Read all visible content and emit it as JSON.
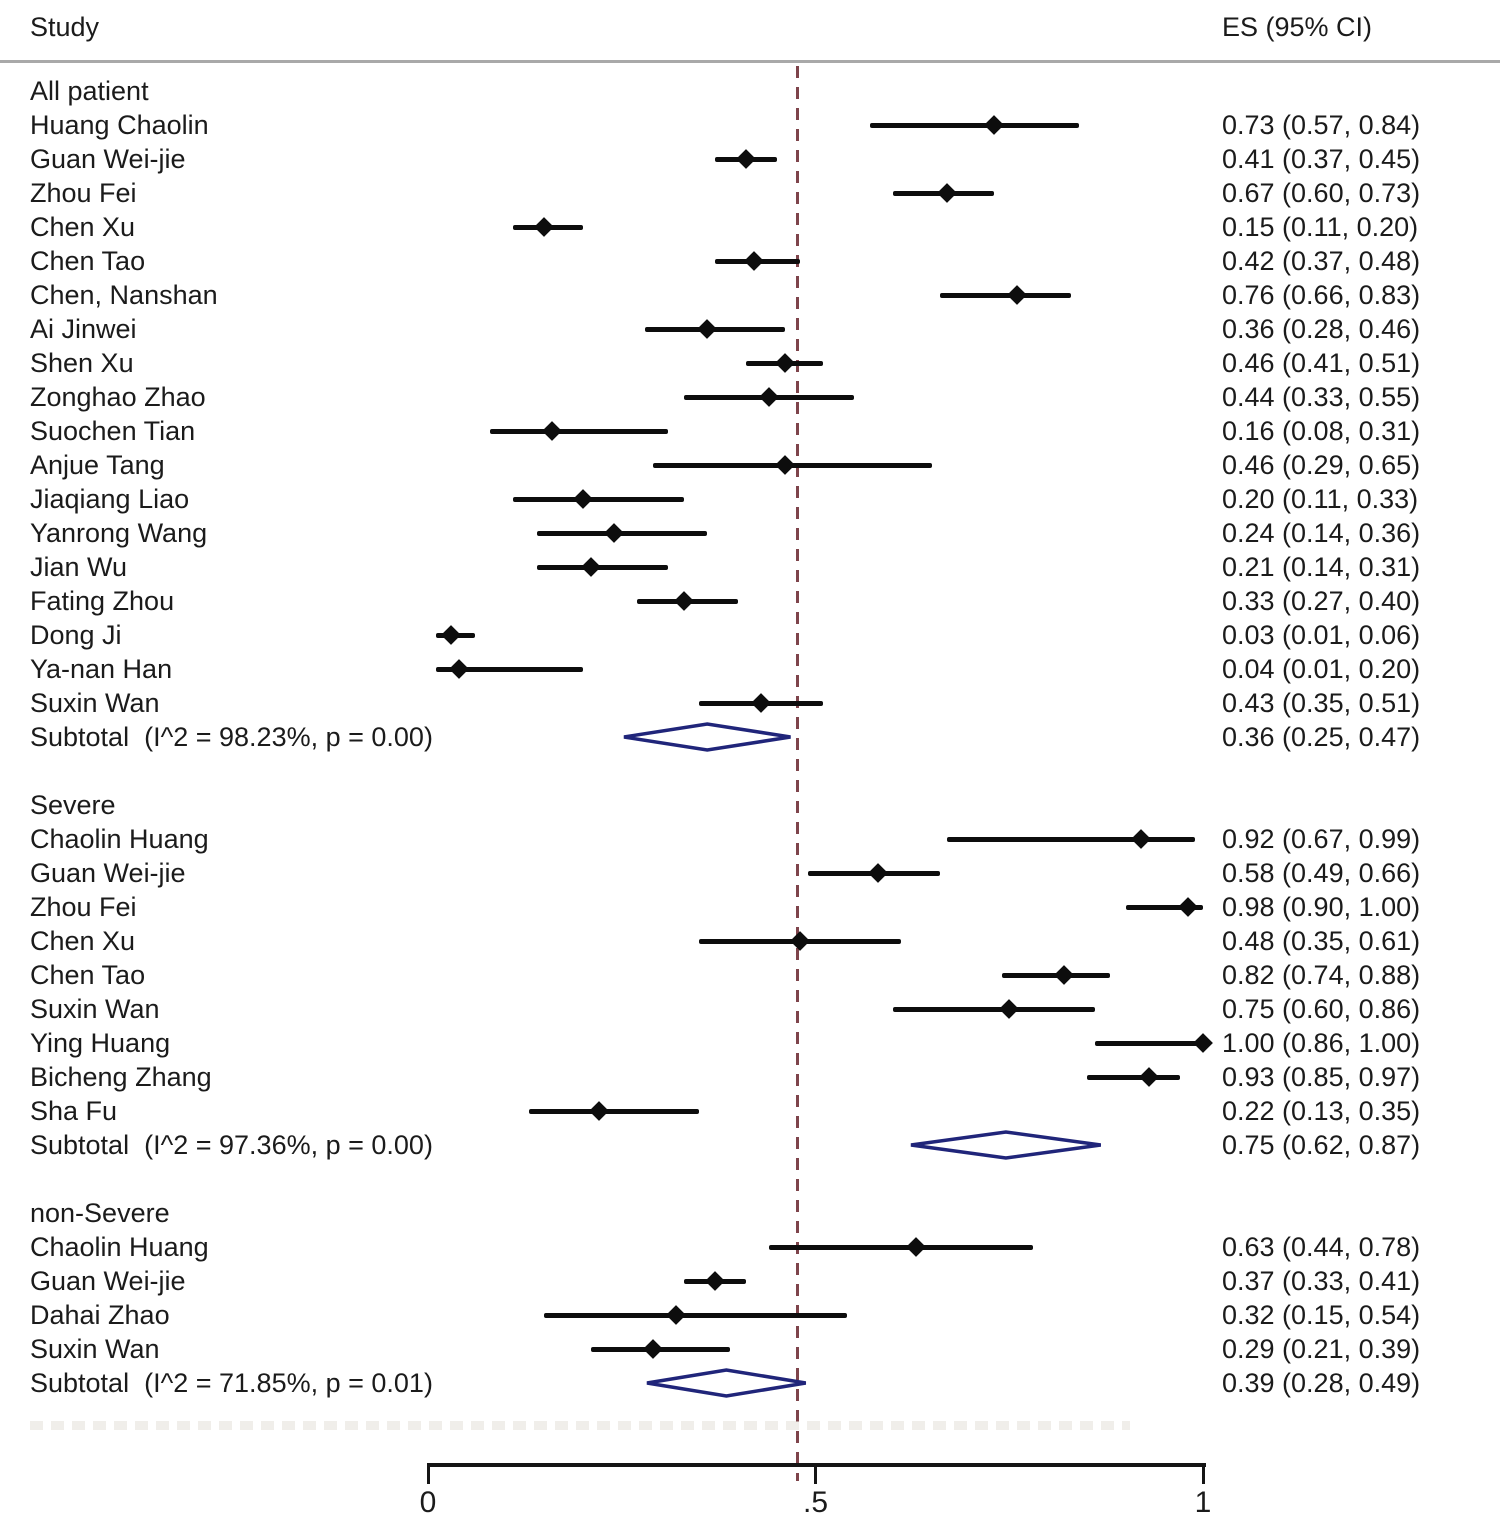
{
  "header": {
    "study": "Study",
    "es": "ES (95% CI)"
  },
  "colors": {
    "marker": "#0d0d0d",
    "ci_line": "#0d0d0d",
    "diamond_outline": "#20257a",
    "reference_line": "#7e444b",
    "divider": "#a9a9a9",
    "axis": "#151515",
    "text": "#1b1b1b"
  },
  "chart_data": {
    "type": "forest",
    "title": "",
    "xlabel": "",
    "es_column_header": "ES (95% CI)",
    "study_column_header": "Study",
    "axis": {
      "range": [
        0,
        1
      ],
      "ticks": [
        {
          "label": "0",
          "value": 0
        },
        {
          "label": ".5",
          "value": 0.5
        },
        {
          "label": "1",
          "value": 1
        }
      ]
    },
    "reference_line_value": 0.477,
    "groups": [
      {
        "name": "All patient",
        "studies": [
          {
            "label": "Huang Chaolin",
            "es": 0.73,
            "lo": 0.57,
            "hi": 0.84,
            "text": "0.73 (0.57, 0.84)"
          },
          {
            "label": "Guan Wei-jie",
            "es": 0.41,
            "lo": 0.37,
            "hi": 0.45,
            "text": "0.41 (0.37, 0.45)"
          },
          {
            "label": "Zhou Fei",
            "es": 0.67,
            "lo": 0.6,
            "hi": 0.73,
            "text": "0.67 (0.60, 0.73)"
          },
          {
            "label": "Chen Xu",
            "es": 0.15,
            "lo": 0.11,
            "hi": 0.2,
            "text": "0.15 (0.11, 0.20)"
          },
          {
            "label": "Chen Tao",
            "es": 0.42,
            "lo": 0.37,
            "hi": 0.48,
            "text": "0.42 (0.37, 0.48)"
          },
          {
            "label": "Chen, Nanshan",
            "es": 0.76,
            "lo": 0.66,
            "hi": 0.83,
            "text": "0.76 (0.66, 0.83)"
          },
          {
            "label": "Ai Jinwei",
            "es": 0.36,
            "lo": 0.28,
            "hi": 0.46,
            "text": "0.36 (0.28, 0.46)"
          },
          {
            "label": "Shen Xu",
            "es": 0.46,
            "lo": 0.41,
            "hi": 0.51,
            "text": "0.46 (0.41, 0.51)"
          },
          {
            "label": "Zonghao Zhao",
            "es": 0.44,
            "lo": 0.33,
            "hi": 0.55,
            "text": "0.44 (0.33, 0.55)"
          },
          {
            "label": "Suochen Tian",
            "es": 0.16,
            "lo": 0.08,
            "hi": 0.31,
            "text": "0.16 (0.08, 0.31)"
          },
          {
            "label": "Anjue Tang",
            "es": 0.46,
            "lo": 0.29,
            "hi": 0.65,
            "text": "0.46 (0.29, 0.65)"
          },
          {
            "label": "Jiaqiang Liao",
            "es": 0.2,
            "lo": 0.11,
            "hi": 0.33,
            "text": "0.20 (0.11, 0.33)"
          },
          {
            "label": "Yanrong Wang",
            "es": 0.24,
            "lo": 0.14,
            "hi": 0.36,
            "text": "0.24 (0.14, 0.36)"
          },
          {
            "label": "Jian Wu",
            "es": 0.21,
            "lo": 0.14,
            "hi": 0.31,
            "text": "0.21 (0.14, 0.31)"
          },
          {
            "label": "Fating Zhou",
            "es": 0.33,
            "lo": 0.27,
            "hi": 0.4,
            "text": "0.33 (0.27, 0.40)"
          },
          {
            "label": "Dong Ji",
            "es": 0.03,
            "lo": 0.01,
            "hi": 0.06,
            "text": "0.03 (0.01, 0.06)"
          },
          {
            "label": "Ya-nan Han",
            "es": 0.04,
            "lo": 0.01,
            "hi": 0.2,
            "text": "0.04 (0.01, 0.20)"
          },
          {
            "label": "Suxin Wan",
            "es": 0.43,
            "lo": 0.35,
            "hi": 0.51,
            "text": "0.43 (0.35, 0.51)"
          }
        ],
        "subtotal": {
          "label": "Subtotal  (I^2 = 98.23%, p = 0.00)",
          "es": 0.36,
          "lo": 0.25,
          "hi": 0.47,
          "text": "0.36 (0.25, 0.47)"
        }
      },
      {
        "name": "Severe",
        "studies": [
          {
            "label": "Chaolin Huang",
            "es": 0.92,
            "lo": 0.67,
            "hi": 0.99,
            "text": "0.92 (0.67, 0.99)"
          },
          {
            "label": "Guan Wei-jie",
            "es": 0.58,
            "lo": 0.49,
            "hi": 0.66,
            "text": "0.58 (0.49, 0.66)"
          },
          {
            "label": "Zhou Fei",
            "es": 0.98,
            "lo": 0.9,
            "hi": 1.0,
            "text": "0.98 (0.90, 1.00)"
          },
          {
            "label": "Chen Xu",
            "es": 0.48,
            "lo": 0.35,
            "hi": 0.61,
            "text": "0.48 (0.35, 0.61)"
          },
          {
            "label": "Chen Tao",
            "es": 0.82,
            "lo": 0.74,
            "hi": 0.88,
            "text": "0.82 (0.74, 0.88)"
          },
          {
            "label": "Suxin Wan",
            "es": 0.75,
            "lo": 0.6,
            "hi": 0.86,
            "text": "0.75 (0.60, 0.86)"
          },
          {
            "label": "Ying Huang",
            "es": 1.0,
            "lo": 0.86,
            "hi": 1.0,
            "text": "1.00 (0.86, 1.00)"
          },
          {
            "label": "Bicheng Zhang",
            "es": 0.93,
            "lo": 0.85,
            "hi": 0.97,
            "text": "0.93 (0.85, 0.97)"
          },
          {
            "label": "Sha Fu",
            "es": 0.22,
            "lo": 0.13,
            "hi": 0.35,
            "text": "0.22 (0.13, 0.35)"
          }
        ],
        "subtotal": {
          "label": "Subtotal  (I^2 = 97.36%, p = 0.00)",
          "es": 0.75,
          "lo": 0.62,
          "hi": 0.87,
          "text": "0.75 (0.62, 0.87)"
        }
      },
      {
        "name": "non-Severe",
        "studies": [
          {
            "label": "Chaolin Huang",
            "es": 0.63,
            "lo": 0.44,
            "hi": 0.78,
            "text": "0.63 (0.44, 0.78)"
          },
          {
            "label": "Guan Wei-jie",
            "es": 0.37,
            "lo": 0.33,
            "hi": 0.41,
            "text": "0.37 (0.33, 0.41)"
          },
          {
            "label": "Dahai Zhao",
            "es": 0.32,
            "lo": 0.15,
            "hi": 0.54,
            "text": "0.32 (0.15, 0.54)"
          },
          {
            "label": "Suxin Wan",
            "es": 0.29,
            "lo": 0.21,
            "hi": 0.39,
            "text": "0.29 (0.21, 0.39)"
          }
        ],
        "subtotal": {
          "label": "Subtotal  (I^2 = 71.85%, p = 0.01)",
          "es": 0.39,
          "lo": 0.28,
          "hi": 0.49,
          "text": "0.39 (0.28, 0.49)"
        }
      }
    ]
  }
}
